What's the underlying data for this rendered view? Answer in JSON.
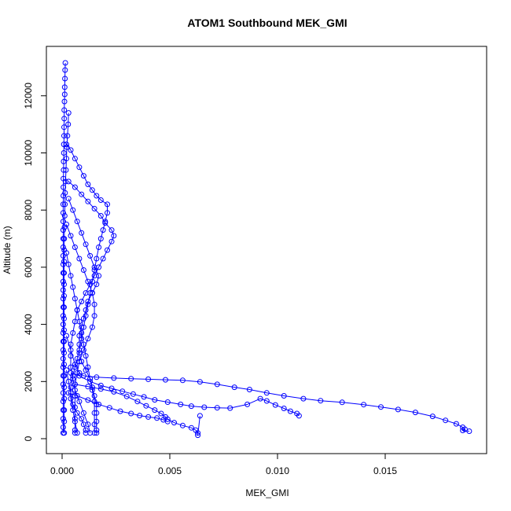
{
  "chart_data": {
    "type": "scatter",
    "title": "ATOM1 Southbound MEK_GMI",
    "xlabel": "MEK_GMI",
    "ylabel": "Altitude (m)",
    "xlim": [
      0,
      0.019
    ],
    "ylim": [
      0,
      13200
    ],
    "x_ticks": [
      0,
      0.005,
      0.01,
      0.015
    ],
    "x_tick_labels": [
      "0.000",
      "0.005",
      "0.010",
      "0.015"
    ],
    "y_ticks": [
      0,
      2000,
      4000,
      6000,
      8000,
      10000,
      12000
    ],
    "y_tick_labels": [
      "0",
      "2000",
      "4000",
      "6000",
      "8000",
      "10000",
      "12000"
    ],
    "grid": false,
    "legend": "none",
    "marker": "open-circle",
    "line_style": "solid",
    "color": "#0000ff",
    "series": [
      {
        "points": [
          [
            0.00015,
            13150
          ],
          [
            0.00014,
            12900
          ],
          [
            0.00013,
            12600
          ],
          [
            0.00012,
            12300
          ],
          [
            0.00012,
            12050
          ],
          [
            0.00011,
            11800
          ],
          [
            0.0001,
            11500
          ],
          [
            0.0001,
            11200
          ],
          [
            9e-05,
            10900
          ],
          [
            9e-05,
            10600
          ],
          [
            8e-05,
            10300
          ],
          [
            8e-05,
            10000
          ],
          [
            7e-05,
            9700
          ],
          [
            7e-05,
            9400
          ],
          [
            6e-05,
            9100
          ],
          [
            6e-05,
            8800
          ],
          [
            6e-05,
            8500
          ],
          [
            5e-05,
            8200
          ],
          [
            5e-05,
            7900
          ],
          [
            5e-05,
            7600
          ],
          [
            5e-05,
            7300
          ],
          [
            5e-05,
            7000
          ],
          [
            5e-05,
            6700
          ],
          [
            5e-05,
            6400
          ],
          [
            5e-05,
            6100
          ],
          [
            5e-05,
            5800
          ],
          [
            5e-05,
            5500
          ],
          [
            5e-05,
            5200
          ],
          [
            5e-05,
            4900
          ],
          [
            5e-05,
            4600
          ],
          [
            5e-05,
            4300
          ],
          [
            5e-05,
            4000
          ],
          [
            5e-05,
            3700
          ],
          [
            5e-05,
            3400
          ],
          [
            5e-05,
            3100
          ],
          [
            5e-05,
            2800
          ],
          [
            5e-05,
            2500
          ],
          [
            5e-05,
            2200
          ],
          [
            5e-05,
            1900
          ],
          [
            5e-05,
            1600
          ],
          [
            5e-05,
            1300
          ],
          [
            5e-05,
            1000
          ],
          [
            5e-05,
            700
          ],
          [
            5e-05,
            400
          ],
          [
            5e-05,
            200
          ]
        ]
      },
      {
        "points": [
          [
            0.0003,
            11400
          ],
          [
            0.00028,
            11000
          ],
          [
            0.00025,
            10600
          ],
          [
            0.00022,
            10200
          ],
          [
            0.0002,
            9800
          ],
          [
            0.00018,
            9400
          ],
          [
            0.00016,
            9000
          ],
          [
            0.00014,
            8600
          ],
          [
            0.00013,
            8200
          ],
          [
            0.00012,
            7800
          ],
          [
            0.00011,
            7400
          ],
          [
            0.0001,
            7000
          ],
          [
            0.0001,
            6600
          ],
          [
            9e-05,
            6200
          ],
          [
            9e-05,
            5800
          ],
          [
            9e-05,
            5400
          ],
          [
            9e-05,
            5000
          ],
          [
            9e-05,
            4600
          ],
          [
            9e-05,
            4200
          ],
          [
            9e-05,
            3800
          ],
          [
            9e-05,
            3400
          ],
          [
            9e-05,
            3000
          ],
          [
            9e-05,
            2600
          ],
          [
            0.0001,
            2200
          ],
          [
            0.0001,
            1800
          ],
          [
            0.0001,
            1400
          ],
          [
            0.0001,
            1000
          ],
          [
            0.0001,
            600
          ],
          [
            0.0001,
            200
          ]
        ]
      },
      {
        "points": [
          [
            0.0002,
            10300
          ],
          [
            0.0004,
            10100
          ],
          [
            0.0006,
            9800
          ],
          [
            0.0008,
            9500
          ],
          [
            0.001,
            9200
          ],
          [
            0.0012,
            8900
          ],
          [
            0.0014,
            8700
          ],
          [
            0.0016,
            8500
          ],
          [
            0.0018,
            8350
          ],
          [
            0.0021,
            8200
          ],
          [
            0.0021,
            7900
          ],
          [
            0.002,
            7600
          ],
          [
            0.0019,
            7300
          ],
          [
            0.0018,
            7000
          ],
          [
            0.0017,
            6700
          ],
          [
            0.0016,
            6300
          ],
          [
            0.0015,
            5900
          ],
          [
            0.0014,
            5500
          ],
          [
            0.0013,
            5100
          ],
          [
            0.0012,
            4700
          ],
          [
            0.0011,
            4300
          ],
          [
            0.001,
            3900
          ],
          [
            0.0009,
            3500
          ],
          [
            0.0008,
            3100
          ],
          [
            0.0007,
            2800
          ],
          [
            0.0006,
            2500
          ],
          [
            0.0005,
            2200
          ],
          [
            0.0004,
            1800
          ],
          [
            0.0004,
            1400
          ],
          [
            0.0005,
            1000
          ],
          [
            0.0006,
            600
          ],
          [
            0.0007,
            200
          ]
        ]
      },
      {
        "points": [
          [
            0.0003,
            9000
          ],
          [
            0.0006,
            8800
          ],
          [
            0.0009,
            8550
          ],
          [
            0.0012,
            8300
          ],
          [
            0.0015,
            8050
          ],
          [
            0.0018,
            7800
          ],
          [
            0.002,
            7550
          ],
          [
            0.0023,
            7300
          ],
          [
            0.0024,
            7100
          ],
          [
            0.0023,
            6900
          ],
          [
            0.0021,
            6600
          ],
          [
            0.0019,
            6300
          ],
          [
            0.0017,
            6000
          ],
          [
            0.0015,
            5700
          ],
          [
            0.0013,
            5400
          ],
          [
            0.0011,
            5100
          ],
          [
            0.0009,
            4800
          ],
          [
            0.0007,
            4500
          ],
          [
            0.0006,
            4100
          ],
          [
            0.0005,
            3700
          ],
          [
            0.0004,
            3300
          ],
          [
            0.0004,
            2900
          ],
          [
            0.0004,
            2500
          ],
          [
            0.0005,
            2100
          ],
          [
            0.0006,
            1700
          ],
          [
            0.0008,
            1300
          ],
          [
            0.001,
            900
          ],
          [
            0.0012,
            500
          ],
          [
            0.0013,
            200
          ]
        ]
      },
      {
        "points": [
          [
            0.0003,
            8400
          ],
          [
            0.0005,
            8000
          ],
          [
            0.0007,
            7600
          ],
          [
            0.0009,
            7200
          ],
          [
            0.0011,
            6800
          ],
          [
            0.0013,
            6400
          ],
          [
            0.0015,
            6000
          ],
          [
            0.0017,
            5700
          ],
          [
            0.0016,
            5400
          ],
          [
            0.0014,
            5100
          ],
          [
            0.0012,
            4800
          ],
          [
            0.0011,
            4500
          ],
          [
            0.001,
            4200
          ],
          [
            0.0009,
            3900
          ],
          [
            0.0008,
            3600
          ],
          [
            0.0008,
            3300
          ],
          [
            0.0008,
            3000
          ],
          [
            0.0009,
            2700
          ],
          [
            0.0011,
            2400
          ],
          [
            0.0013,
            2100
          ],
          [
            0.0014,
            1800
          ],
          [
            0.0015,
            1500
          ],
          [
            0.0016,
            1200
          ],
          [
            0.0016,
            900
          ],
          [
            0.0016,
            600
          ],
          [
            0.0016,
            300
          ],
          [
            0.0016,
            200
          ]
        ]
      },
      {
        "points": [
          [
            0.0002,
            7500
          ],
          [
            0.0004,
            7100
          ],
          [
            0.0006,
            6700
          ],
          [
            0.0008,
            6300
          ],
          [
            0.001,
            5900
          ],
          [
            0.0012,
            5500
          ],
          [
            0.0014,
            5100
          ],
          [
            0.0015,
            4700
          ],
          [
            0.0015,
            4300
          ],
          [
            0.0014,
            3900
          ],
          [
            0.0012,
            3500
          ],
          [
            0.001,
            3100
          ],
          [
            0.0008,
            2700
          ],
          [
            0.0007,
            2300
          ],
          [
            0.0006,
            1900
          ],
          [
            0.0006,
            1500
          ],
          [
            0.0006,
            1100
          ],
          [
            0.0006,
            700
          ],
          [
            0.0006,
            300
          ],
          [
            0.0006,
            200
          ]
        ]
      },
      {
        "points": [
          [
            0.0002,
            6500
          ],
          [
            0.0003,
            6100
          ],
          [
            0.0004,
            5700
          ],
          [
            0.0005,
            5300
          ],
          [
            0.0006,
            4900
          ],
          [
            0.0007,
            4500
          ],
          [
            0.0008,
            4100
          ],
          [
            0.0009,
            3700
          ],
          [
            0.001,
            3300
          ],
          [
            0.0011,
            2900
          ],
          [
            0.0012,
            2500
          ],
          [
            0.0013,
            2100
          ],
          [
            0.0014,
            1700
          ],
          [
            0.0015,
            1300
          ],
          [
            0.0015,
            900
          ],
          [
            0.0015,
            500
          ],
          [
            0.0015,
            200
          ]
        ]
      },
      {
        "points": [
          [
            0.0002,
            3600
          ],
          [
            0.0004,
            3100
          ],
          [
            0.0006,
            2600
          ],
          [
            0.0008,
            2300
          ],
          [
            0.001,
            2200
          ],
          [
            0.0016,
            2150
          ],
          [
            0.0024,
            2120
          ],
          [
            0.0032,
            2100
          ],
          [
            0.004,
            2080
          ],
          [
            0.0048,
            2060
          ],
          [
            0.0056,
            2040
          ],
          [
            0.0064,
            1990
          ],
          [
            0.0072,
            1900
          ],
          [
            0.008,
            1800
          ],
          [
            0.0087,
            1720
          ],
          [
            0.0095,
            1600
          ],
          [
            0.0103,
            1500
          ],
          [
            0.0112,
            1400
          ],
          [
            0.012,
            1330
          ],
          [
            0.013,
            1270
          ],
          [
            0.014,
            1190
          ],
          [
            0.0148,
            1110
          ],
          [
            0.0156,
            1020
          ],
          [
            0.0164,
            920
          ],
          [
            0.0172,
            780
          ],
          [
            0.0178,
            640
          ],
          [
            0.0183,
            520
          ],
          [
            0.0186,
            400
          ],
          [
            0.0187,
            330
          ],
          [
            0.0186,
            290
          ],
          [
            0.0189,
            260
          ]
        ]
      },
      {
        "points": [
          [
            0.0004,
            2300
          ],
          [
            0.0008,
            2200
          ],
          [
            0.0013,
            2000
          ],
          [
            0.0018,
            1860
          ],
          [
            0.0023,
            1760
          ],
          [
            0.0028,
            1660
          ],
          [
            0.0033,
            1560
          ],
          [
            0.0038,
            1460
          ],
          [
            0.0043,
            1360
          ],
          [
            0.0049,
            1280
          ],
          [
            0.0055,
            1200
          ],
          [
            0.006,
            1140
          ],
          [
            0.0066,
            1100
          ],
          [
            0.0072,
            1080
          ],
          [
            0.0078,
            1070
          ],
          [
            0.0086,
            1200
          ],
          [
            0.0092,
            1400
          ],
          [
            0.0095,
            1320
          ],
          [
            0.0099,
            1180
          ],
          [
            0.0103,
            1060
          ],
          [
            0.0106,
            960
          ],
          [
            0.0109,
            880
          ],
          [
            0.011,
            800
          ]
        ]
      },
      {
        "points": [
          [
            0.0006,
            1900
          ],
          [
            0.0012,
            1820
          ],
          [
            0.0018,
            1740
          ],
          [
            0.0024,
            1640
          ],
          [
            0.003,
            1480
          ],
          [
            0.0035,
            1300
          ],
          [
            0.0039,
            1150
          ],
          [
            0.0043,
            1000
          ],
          [
            0.0046,
            880
          ],
          [
            0.0048,
            760
          ],
          [
            0.0049,
            680
          ],
          [
            0.0052,
            560
          ],
          [
            0.0056,
            460
          ],
          [
            0.006,
            380
          ],
          [
            0.0062,
            300
          ],
          [
            0.0063,
            200
          ],
          [
            0.0063,
            120
          ],
          [
            0.0064,
            800
          ]
        ]
      },
      {
        "points": [
          [
            0.0003,
            1600
          ],
          [
            0.0007,
            1500
          ],
          [
            0.0012,
            1350
          ],
          [
            0.0017,
            1200
          ],
          [
            0.0022,
            1080
          ],
          [
            0.0027,
            960
          ],
          [
            0.0032,
            880
          ],
          [
            0.0036,
            810
          ],
          [
            0.004,
            760
          ],
          [
            0.0044,
            720
          ],
          [
            0.0047,
            660
          ],
          [
            0.0049,
            600
          ]
        ]
      },
      {
        "points": [
          [
            0.0002,
            2400
          ],
          [
            0.0003,
            2000
          ],
          [
            0.0004,
            1600
          ],
          [
            0.0005,
            1200
          ],
          [
            0.0007,
            900
          ],
          [
            0.0009,
            700
          ],
          [
            0.001,
            500
          ],
          [
            0.0011,
            300
          ],
          [
            0.0011,
            200
          ]
        ]
      }
    ]
  }
}
